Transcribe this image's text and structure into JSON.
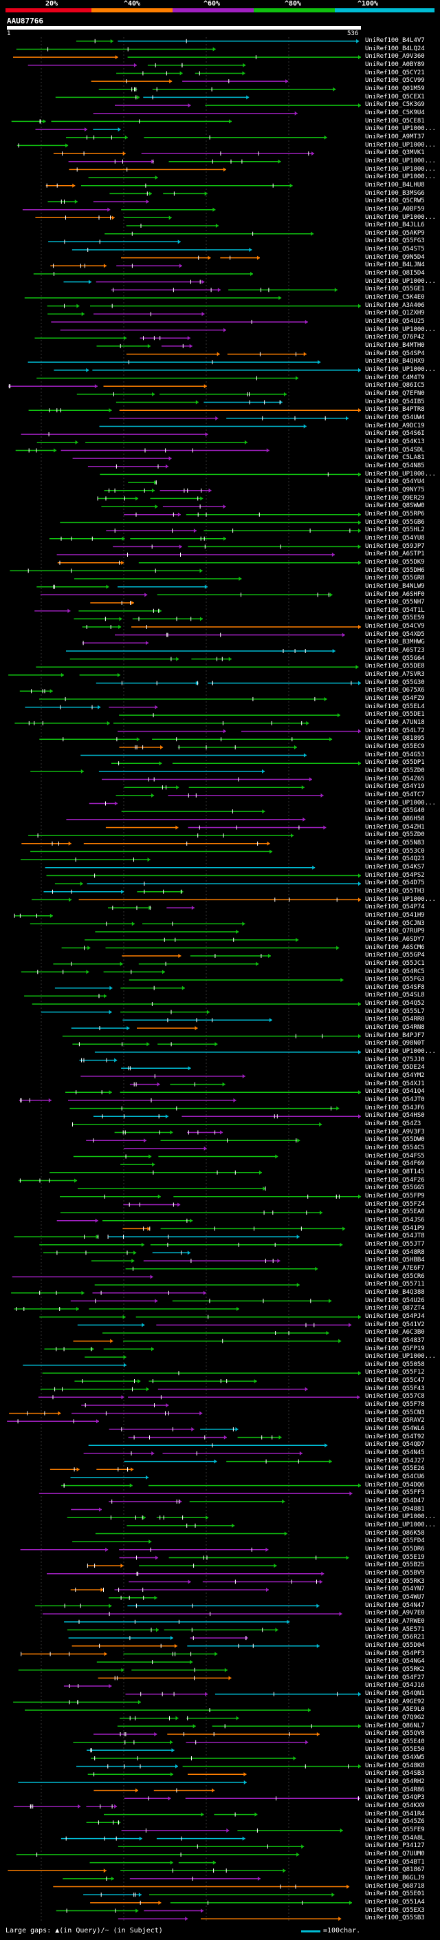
{
  "scale": {
    "labels": [
      "20%",
      "^40%",
      "^60%",
      "^80%",
      "^100%"
    ],
    "colors": [
      "#e8001a",
      "#ff7f00",
      "#a020c0",
      "#10c010",
      "#00bcd4"
    ]
  },
  "query": {
    "id": "AAU87766",
    "start": "1",
    "end": "536"
  },
  "colors": {
    "background": "#000000",
    "low": "#e8001a",
    "mid_low": "#ff7f00",
    "mid": "#a020c0",
    "high": "#10c010",
    "top": "#00bcd4",
    "query": "#ffffff"
  },
  "hits": [
    "UniRef100_B4L4V7",
    "UniRef100_B4LQ24",
    "UniRef100_A9V360",
    "UniRef100_A0BY89",
    "UniRef100_Q5CY21",
    "UniRef100_Q5CV99",
    "UniRef100_Q01M59",
    "UniRef100_Q5CEX1",
    "UniRef100_C5K3G9",
    "UniRef100_C5K9U4",
    "UniRef100_Q5CE81",
    "UniRef100_UP1000...",
    "UniRef100_A9MT37",
    "UniRef100_UP1000...",
    "UniRef100_Q3MVK1",
    "UniRef100_UP1000...",
    "UniRef100_UP1000...",
    "UniRef100_UP1000...",
    "UniRef100_B4LHU8",
    "UniRef100_B3MSG6",
    "UniRef100_Q5CRW5",
    "UniRef100_A0BF59",
    "UniRef100_UP1000...",
    "UniRef100_B4JLL6",
    "UniRef100_Q5AKP9",
    "UniRef100_Q55FG3",
    "UniRef100_Q54ST5",
    "UniRef100_Q9N5D4",
    "UniRef100_B4LJN4",
    "UniRef100_Q8I5D4",
    "UniRef100_UP1000...",
    "UniRef100_Q55GE1",
    "UniRef100_C5K4E0",
    "UniRef100_A3A406",
    "UniRef100_Q1ZXH9",
    "UniRef100_Q54U25",
    "UniRef100_UP1000...",
    "UniRef100_Q76P42",
    "UniRef100_B4MTH0",
    "UniRef100_Q54SP4",
    "UniRef100_B4QHX9",
    "UniRef100_UP1000...",
    "UniRef100_C4M4T9",
    "UniRef100_Q86IC5",
    "UniRef100_Q7EFN0",
    "UniRef100_Q54IB5",
    "UniRef100_B4PTR8",
    "UniRef100_Q54UW4",
    "UniRef100_A9DC19",
    "UniRef100_Q54S6I",
    "UniRef100_Q54K13",
    "UniRef100_Q54SDL",
    "UniRef100_C5LA81",
    "UniRef100_Q54N85",
    "UniRef100_UP1000...",
    "UniRef100_Q54YU4",
    "UniRef100_Q9NY75",
    "UniRef100_Q9ER29",
    "UniRef100_Q8SWW0",
    "UniRef100_Q55RP6",
    "UniRef100_Q55GB6",
    "UniRef100_Q55HL2",
    "UniRef100_Q54YU8",
    "UniRef100_Q59JP7",
    "UniRef100_A6STP1",
    "UniRef100_Q55DK9",
    "UniRef100_Q55DH6",
    "UniRef100_Q55GR8",
    "UniRef100_B4NLW9",
    "UniRef100_A6SHF0",
    "UniRef100_Q55NH7",
    "UniRef100_Q54T1L",
    "UniRef100_Q55E59",
    "UniRef100_Q54CV9",
    "UniRef100_Q54XD5",
    "UniRef100_B3MHWG",
    "UniRef100_A6ST23",
    "UniRef100_Q55G64",
    "UniRef100_Q55DE8",
    "UniRef100_A7SVR3",
    "UniRef100_Q55G30",
    "UniRef100_Q675X6",
    "UniRef100_Q54FZ9",
    "UniRef100_Q55EL4",
    "UniRef100_Q55DE1",
    "UniRef100_A7UN18",
    "UniRef100_Q54L72",
    "UniRef100_Q81895",
    "UniRef100_Q55EC9",
    "UniRef100_Q54G53",
    "UniRef100_Q55DP1",
    "UniRef100_Q55ZD0",
    "UniRef100_Q54Z65",
    "UniRef100_Q54Y19",
    "UniRef100_Q54TC7",
    "UniRef100_UP1000...",
    "UniRef100_Q55G40",
    "UniRef100_Q86H58",
    "UniRef100_Q54ZH1",
    "UniRef100_Q55ZD0",
    "UniRef100_Q55N83",
    "UniRef100_Q553C0",
    "UniRef100_Q54Q23",
    "UniRef100_Q54KS7",
    "UniRef100_Q54PS2",
    "UniRef100_Q54D75",
    "UniRef100_Q55TH3",
    "UniRef100_UP1000...",
    "UniRef100_Q54P74",
    "UniRef100_Q541H9",
    "UniRef100_Q5CJN3",
    "UniRef100_Q7RUP9",
    "UniRef100_A6SDY7",
    "UniRef100_A6SCM6",
    "UniRef100_Q55GP4",
    "UniRef100_Q55JC1",
    "UniRef100_Q54RC5",
    "UniRef100_Q55FG3",
    "UniRef100_Q54SF8",
    "UniRef100_Q54SL8",
    "UniRef100_Q54Q52",
    "UniRef100_Q555L7",
    "UniRef100_Q54RR0",
    "UniRef100_Q54RN8",
    "UniRef100_B4PJF7",
    "UniRef100_Q98N0T",
    "UniRef100_UP1000...",
    "UniRef100_Q75JJ0",
    "UniRef100_Q5DE24",
    "UniRef100_Q54YM2",
    "UniRef100_Q54XJ1",
    "UniRef100_Q541Q4",
    "UniRef100_Q54JT0",
    "UniRef100_Q54JF6",
    "UniRef100_Q54HS0",
    "UniRef100_Q54Z3",
    "UniRef100_A9V3F3",
    "UniRef100_Q55DW0",
    "UniRef100_Q554C5",
    "UniRef100_Q54FS5",
    "UniRef100_Q54F69",
    "UniRef100_Q8T145",
    "UniRef100_Q54F26",
    "UniRef100_Q55GG5",
    "UniRef100_Q55FP9",
    "UniRef100_Q55FZ4",
    "UniRef100_Q55EA0",
    "UniRef100_Q54JS6",
    "UniRef100_Q541P9",
    "UniRef100_Q54JT8",
    "UniRef100_Q55JT7",
    "UniRef100_Q548R8",
    "UniRef100_Q5HBB4",
    "UniRef100_A7E6F7",
    "UniRef100_Q55CR6",
    "UniRef100_Q55711",
    "UniRef100_B4Q388",
    "UniRef100_Q54U26",
    "UniRef100_Q87ZT4",
    "UniRef100_Q54PJ4",
    "UniRef100_Q541V2",
    "UniRef100_A6C3B0",
    "UniRef100_Q54837",
    "UniRef100_Q5FP19",
    "UniRef100_UP1000...",
    "UniRef100_Q55058",
    "UniRef100_Q55F12",
    "UniRef100_Q55C47",
    "UniRef100_Q55F43",
    "UniRef100_Q557C8",
    "UniRef100_Q55F78",
    "UniRef100_Q55CN3",
    "UniRef100_Q5RAV2",
    "UniRef100_Q54WL6",
    "UniRef100_Q54T92",
    "UniRef100_Q54QD7",
    "UniRef100_Q54N45",
    "UniRef100_Q54J27",
    "UniRef100_Q55E26",
    "UniRef100_Q54CU6",
    "UniRef100_Q54DQ6",
    "UniRef100_Q55FF3",
    "UniRef100_Q54D47",
    "UniRef100_Q94881",
    "UniRef100_UP1000...",
    "UniRef100_UP1000...",
    "UniRef100_Q86K58",
    "UniRef100_Q55FD4",
    "UniRef100_Q55DR6",
    "UniRef100_Q55E19",
    "UniRef100_Q55B25",
    "UniRef100_Q55BV9",
    "UniRef100_Q55RK3",
    "UniRef100_Q54YN7",
    "UniRef100_Q54WU7",
    "UniRef100_Q54N47",
    "UniRef100_A9V7E0",
    "UniRef100_A7RWE0",
    "UniRef100_A5E571",
    "UniRef100_Q56R21",
    "UniRef100_Q55D04",
    "UniRef100_Q54PF3",
    "UniRef100_Q54NG4",
    "UniRef100_Q55RK2",
    "UniRef100_Q54F27",
    "UniRef100_Q54J16",
    "UniRef100_Q54QN1",
    "UniRef100_A9GE92",
    "UniRef100_A5E9L0",
    "UniRef100_Q7Q9G2",
    "UniRef100_Q86NL7",
    "UniRef100_Q55QV8",
    "UniRef100_Q55E40",
    "UniRef100_Q55E50",
    "UniRef100_Q54XW5",
    "UniRef100_Q548K8",
    "UniRef100_Q54SB3",
    "UniRef100_Q54RH2",
    "UniRef100_Q54R86",
    "UniRef100_Q54QP3",
    "UniRef100_Q54KX9",
    "UniRef100_Q541R4",
    "UniRef100_Q545Z6",
    "UniRef100_Q55FE9",
    "UniRef100_Q54A8L",
    "UniRef100_P34127",
    "UniRef100_Q7UUM0",
    "UniRef100_Q54BT1",
    "UniRef100_Q81867",
    "UniRef100_B6GLJ9",
    "UniRef100_Q68718",
    "UniRef100_Q55E01",
    "UniRef100_Q551A4",
    "UniRef100_Q55EX3",
    "UniRef100_Q55SB3"
  ],
  "legend": {
    "text": "Large gaps: ▲(in Query)/~ (in Subject)",
    "scale_text": "=100char."
  }
}
